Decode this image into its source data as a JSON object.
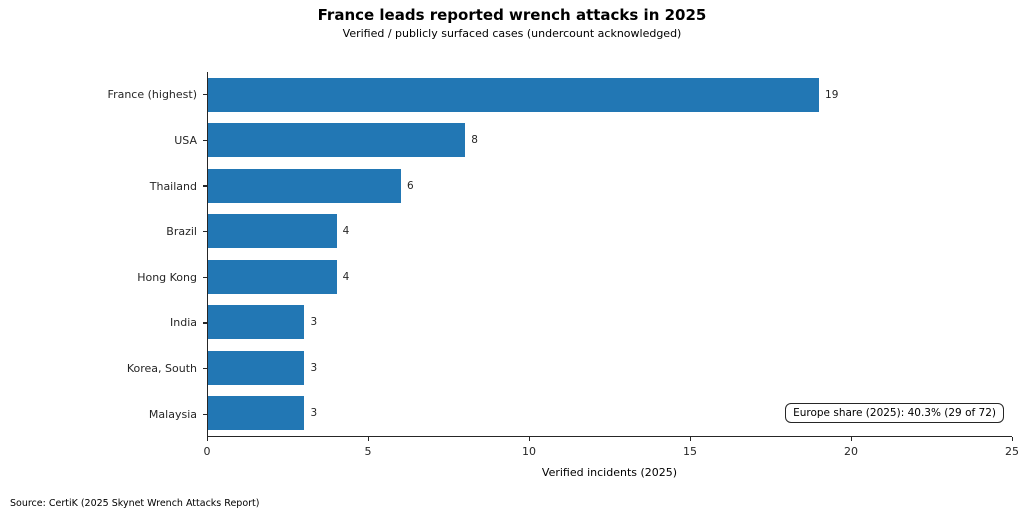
{
  "chart_data": {
    "type": "bar",
    "orientation": "horizontal",
    "title": "France leads reported wrench attacks in 2025",
    "subtitle": "Verified / publicly surfaced cases (undercount acknowledged)",
    "categories": [
      "France (highest)",
      "USA",
      "Thailand",
      "Brazil",
      "Hong Kong",
      "India",
      "Korea, South",
      "Malaysia"
    ],
    "values": [
      19,
      8,
      6,
      4,
      4,
      3,
      3,
      3
    ],
    "xlabel": "Verified incidents (2025)",
    "ylabel": "",
    "xlim": [
      0,
      25
    ],
    "xticks": [
      0,
      5,
      10,
      15,
      20,
      25
    ],
    "bar_color": "#2277b4",
    "grid": false,
    "legend": null,
    "value_labels_shown": true,
    "annotation": "Europe share (2025): 40.3% (29 of 72)"
  },
  "source_note": "Source: CertiK (2025 Skynet Wrench Attacks Report)"
}
